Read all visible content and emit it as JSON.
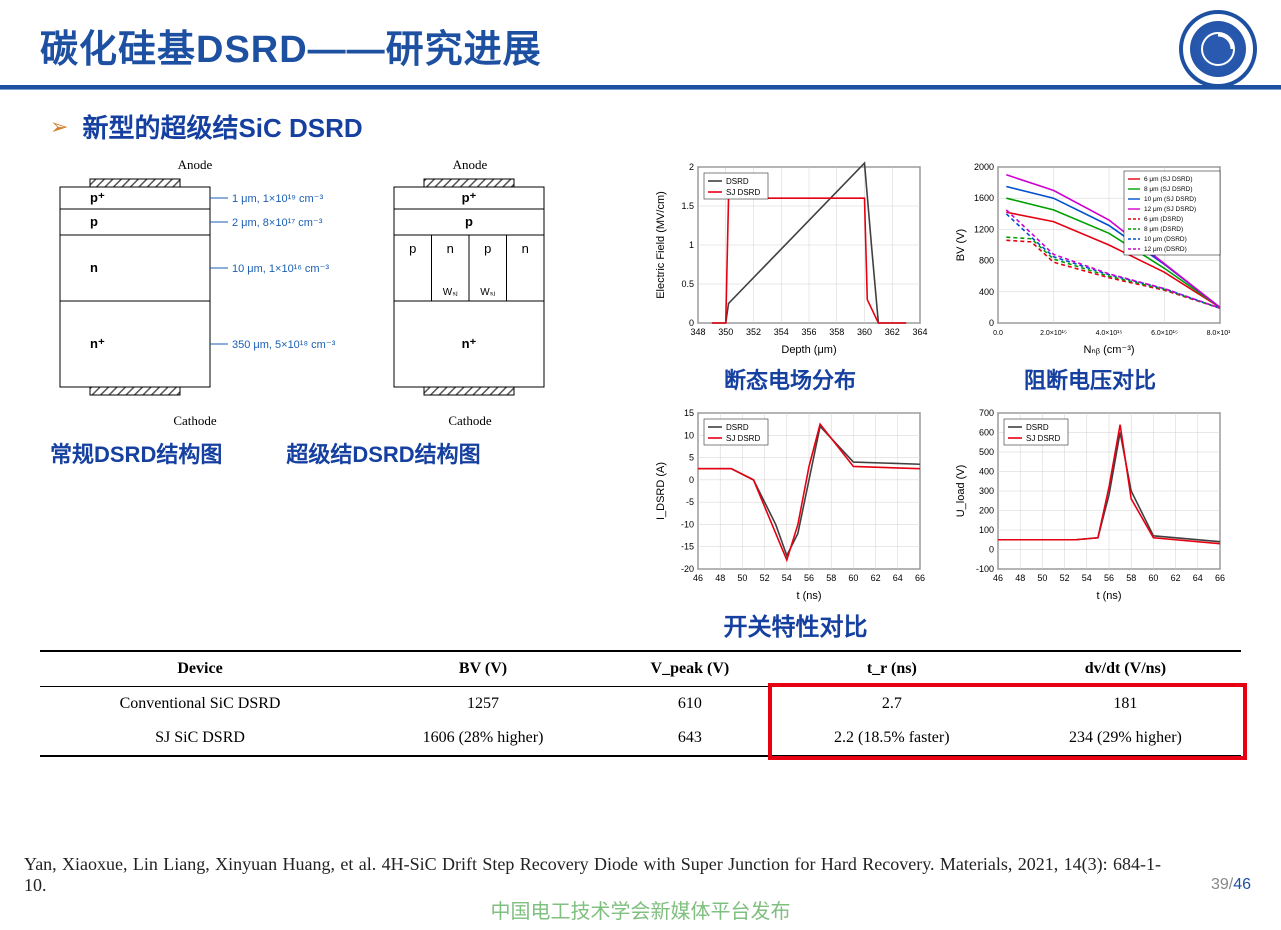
{
  "header": {
    "title": "碳化硅基DSRD——研究进展",
    "bar_color": "#1e50a2"
  },
  "bullet": {
    "marker": "➢",
    "marker_color": "#d08030",
    "text": "新型的超级结SiC DSRD",
    "text_color": "#1640a0"
  },
  "structures": {
    "anode_label": "Anode",
    "cathode_label": "Cathode",
    "conv": {
      "caption": "常规DSRD结构图",
      "layers": [
        {
          "label": "p⁺",
          "h": 22,
          "note": "1 μm, 1×10¹⁹ cm⁻³"
        },
        {
          "label": "p",
          "h": 26,
          "note": "2 μm, 8×10¹⁷ cm⁻³"
        },
        {
          "label": "n",
          "h": 66,
          "note": "10 μm, 1×10¹⁶ cm⁻³"
        },
        {
          "label": "n⁺",
          "h": 86,
          "note": "350 μm, 5×10¹⁸ cm⁻³"
        }
      ]
    },
    "sj": {
      "caption": "超级结DSRD结构图",
      "layers": [
        {
          "label": "p⁺",
          "h": 22
        },
        {
          "label": "p",
          "h": 26
        },
        {
          "label": "sj",
          "h": 66,
          "cols": [
            "p",
            "n",
            "p",
            "n"
          ],
          "w_label": "Wₛⱼ"
        },
        {
          "label": "n⁺",
          "h": 86
        }
      ]
    }
  },
  "charts": {
    "efield": {
      "caption": "断态电场分布",
      "xlabel": "Depth (μm)",
      "ylabel": "Electric Field (MV/cm)",
      "xlim": [
        348,
        364
      ],
      "xtick": 2,
      "ylim": [
        0,
        2.0
      ],
      "ytick": 0.5,
      "legend": [
        "DSRD",
        "SJ DSRD"
      ],
      "colors": {
        "dsrd": "#404040",
        "sj": "#e60012",
        "grid": "#d0d0d0",
        "bg": "#ffffff"
      },
      "dsrd": {
        "x": [
          349,
          350,
          350.2,
          360,
          360.5,
          361,
          363
        ],
        "y": [
          0,
          0,
          0.25,
          2.05,
          1.0,
          0,
          0
        ]
      },
      "sj": {
        "x": [
          349,
          350,
          350.2,
          360,
          360.2,
          361,
          363
        ],
        "y": [
          0,
          0,
          1.6,
          1.6,
          0.3,
          0,
          0
        ]
      }
    },
    "bv": {
      "caption": "阻断电压对比",
      "xlabel": "Nₙᵦ (cm⁻³)",
      "ylabel": "BV (V)",
      "xlim": [
        0,
        8
      ],
      "xtick_labels": [
        "0.0",
        "2.0×10¹⁵",
        "4.0×10¹⁵",
        "6.0×10¹⁵",
        "8.0×10¹⁵"
      ],
      "ylim": [
        0,
        2000
      ],
      "ytick": 400,
      "legend": [
        {
          "label": "6 μm (SJ DSRD)",
          "color": "#e60012",
          "dash": false
        },
        {
          "label": "8 μm (SJ DSRD)",
          "color": "#00a000",
          "dash": false
        },
        {
          "label": "10 μm (SJ DSRD)",
          "color": "#0050d0",
          "dash": false
        },
        {
          "label": "12 μm (SJ DSRD)",
          "color": "#d000d0",
          "dash": false
        },
        {
          "label": "6 μm (DSRD)",
          "color": "#e60012",
          "dash": true
        },
        {
          "label": "8 μm (DSRD)",
          "color": "#00a000",
          "dash": true
        },
        {
          "label": "10 μm (DSRD)",
          "color": "#0050d0",
          "dash": true
        },
        {
          "label": "12 μm (DSRD)",
          "color": "#d000d0",
          "dash": true
        }
      ],
      "series": [
        {
          "color": "#e60012",
          "dash": false,
          "x": [
            0.3,
            2,
            4,
            6,
            8
          ],
          "y": [
            1420,
            1300,
            1000,
            650,
            200
          ]
        },
        {
          "color": "#00a000",
          "dash": false,
          "x": [
            0.3,
            2,
            4,
            6,
            8
          ],
          "y": [
            1600,
            1450,
            1150,
            700,
            200
          ]
        },
        {
          "color": "#0050d0",
          "dash": false,
          "x": [
            0.3,
            2,
            4,
            6,
            8
          ],
          "y": [
            1750,
            1600,
            1250,
            750,
            200
          ]
        },
        {
          "color": "#d000d0",
          "dash": false,
          "x": [
            0.3,
            2,
            4,
            6,
            8
          ],
          "y": [
            1900,
            1700,
            1320,
            760,
            200
          ]
        },
        {
          "color": "#e60012",
          "dash": true,
          "x": [
            0.3,
            1.2,
            2,
            4,
            6,
            8
          ],
          "y": [
            1060,
            1040,
            780,
            580,
            420,
            190
          ]
        },
        {
          "color": "#00a000",
          "dash": true,
          "x": [
            0.3,
            1.2,
            2,
            4,
            6,
            8
          ],
          "y": [
            1100,
            1080,
            820,
            600,
            430,
            190
          ]
        },
        {
          "color": "#0050d0",
          "dash": true,
          "x": [
            0.3,
            1.2,
            2,
            4,
            6,
            8
          ],
          "y": [
            1400,
            1100,
            850,
            620,
            440,
            190
          ]
        },
        {
          "color": "#d000d0",
          "dash": true,
          "x": [
            0.3,
            1.2,
            2,
            4,
            6,
            8
          ],
          "y": [
            1450,
            1150,
            880,
            630,
            440,
            190
          ]
        }
      ]
    },
    "idsrd": {
      "xlabel": "t (ns)",
      "ylabel": "I_DSRD (A)",
      "xlim": [
        46,
        66
      ],
      "xtick": 2,
      "ylim": [
        -20,
        15
      ],
      "ytick": 5,
      "legend": [
        "DSRD",
        "SJ DSRD"
      ],
      "colors": {
        "dsrd": "#404040",
        "sj": "#e60012",
        "grid": "#d0d0d0"
      },
      "dsrd": {
        "x": [
          46,
          49,
          51,
          53,
          54,
          55,
          56,
          57,
          60,
          66
        ],
        "y": [
          2.5,
          2.5,
          0,
          -10,
          -17,
          -12,
          0,
          12,
          4,
          3.5
        ]
      },
      "sj": {
        "x": [
          46,
          49,
          51,
          53,
          54,
          55,
          56,
          57,
          60,
          66
        ],
        "y": [
          2.5,
          2.5,
          0,
          -12,
          -18,
          -10,
          3,
          12.5,
          3,
          2.5
        ]
      }
    },
    "uload": {
      "xlabel": "t (ns)",
      "ylabel": "U_load (V)",
      "xlim": [
        46,
        66
      ],
      "xtick": 2,
      "ylim": [
        -100,
        700
      ],
      "ytick": 100,
      "legend": [
        "DSRD",
        "SJ DSRD"
      ],
      "colors": {
        "dsrd": "#404040",
        "sj": "#e60012",
        "grid": "#d0d0d0"
      },
      "dsrd": {
        "x": [
          46,
          53,
          55,
          56,
          57,
          58,
          60,
          66
        ],
        "y": [
          50,
          50,
          60,
          280,
          600,
          300,
          70,
          40
        ]
      },
      "sj": {
        "x": [
          46,
          53,
          55,
          56,
          57,
          58,
          60,
          66
        ],
        "y": [
          50,
          50,
          60,
          320,
          640,
          260,
          60,
          30
        ]
      }
    },
    "switch_caption": "开关特性对比"
  },
  "table": {
    "columns": [
      "Device",
      "BV (V)",
      "V_peak (V)",
      "t_r (ns)",
      "dv/dt (V/ns)"
    ],
    "highlight_cols": [
      3,
      4
    ],
    "highlight_color": "#e60012",
    "rows": [
      [
        "Conventional SiC DSRD",
        "1257",
        "610",
        "2.7",
        "181"
      ],
      [
        "SJ SiC DSRD",
        "1606 (28% higher)",
        "643",
        "2.2 (18.5% faster)",
        "234 (29% higher)"
      ]
    ]
  },
  "citation": "Yan, Xiaoxue, Lin Liang, Xinyuan Huang, et al. 4H-SiC Drift Step Recovery Diode with Super Junction for Hard Recovery. Materials, 2021, 14(3): 684-1-10.",
  "page": {
    "current": "39",
    "total": "46"
  },
  "watermark": "中国电工技术学会新媒体平台发布"
}
